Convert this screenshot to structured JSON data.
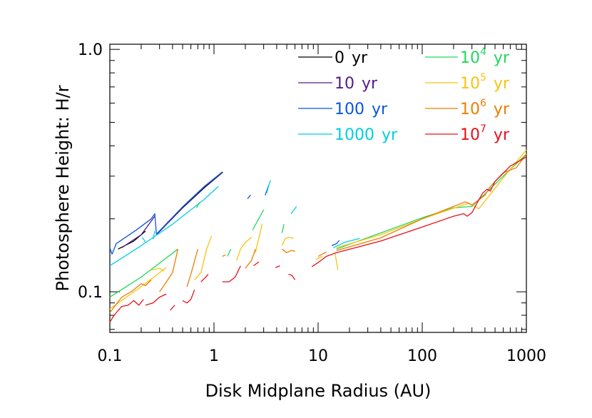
{
  "chart_data": {
    "type": "line",
    "xlabel": "Disk Midplane Radius (AU)",
    "ylabel": "Photosphere Height: H/r",
    "xscale": "log",
    "yscale": "log",
    "xlim": [
      0.1,
      1000
    ],
    "ylim": [
      0.068,
      1.05
    ],
    "xticks": [
      {
        "value": 0.1,
        "label": "0.1"
      },
      {
        "value": 1,
        "label": "1"
      },
      {
        "value": 10,
        "label": "10"
      },
      {
        "value": 100,
        "label": "100"
      },
      {
        "value": 1000,
        "label": "1000"
      }
    ],
    "yticks": [
      {
        "value": 0.1,
        "label": "0.1"
      },
      {
        "value": 1.0,
        "label": "1.0"
      }
    ],
    "legend_placement": "top-right",
    "series": [
      {
        "name": "0 yr",
        "base": "0",
        "exp": "",
        "color": "#000000",
        "segments": [
          [
            [
              0.12,
              0.15
            ],
            [
              0.17,
              0.162
            ],
            [
              0.22,
              0.178
            ]
          ],
          [
            [
              0.28,
              0.172
            ],
            [
              0.5,
              0.222
            ],
            [
              0.8,
              0.268
            ],
            [
              1.2,
              0.31
            ]
          ]
        ]
      },
      {
        "name": "10 yr",
        "base": "10",
        "exp": "",
        "color": "#551a8b",
        "segments": [
          [
            [
              0.13,
              0.152
            ],
            [
              0.2,
              0.172
            ],
            [
              0.27,
              0.205
            ]
          ],
          [
            [
              0.28,
              0.172
            ],
            [
              0.5,
              0.223
            ],
            [
              0.8,
              0.27
            ],
            [
              1.22,
              0.312
            ]
          ]
        ]
      },
      {
        "name": "100 yr",
        "base": "100",
        "exp": "",
        "color": "#0b55e0",
        "segments": [
          [
            [
              0.1,
              0.152
            ],
            [
              0.105,
              0.143
            ],
            [
              0.115,
              0.158
            ],
            [
              0.18,
              0.18
            ],
            [
              0.25,
              0.2
            ],
            [
              0.27,
              0.21
            ],
            [
              0.28,
              0.173
            ],
            [
              0.5,
              0.224
            ],
            [
              0.8,
              0.271
            ],
            [
              1.2,
              0.312
            ]
          ],
          [
            [
              2.1,
              0.242
            ],
            [
              2.25,
              0.251
            ]
          ],
          [
            [
              3.1,
              0.25
            ],
            [
              3.35,
              0.275
            ]
          ],
          [
            [
              13.5,
              0.155
            ],
            [
              15,
              0.158
            ],
            [
              16,
              0.163
            ]
          ]
        ]
      },
      {
        "name": "1000 yr",
        "base": "1000",
        "exp": "",
        "color": "#00cfe0",
        "segments": [
          [
            [
              0.1,
              0.128
            ],
            [
              0.2,
              0.155
            ],
            [
              0.4,
              0.19
            ],
            [
              0.8,
              0.24
            ],
            [
              1.1,
              0.272
            ]
          ],
          [
            [
              0.205,
              0.168
            ],
            [
              0.22,
              0.16
            ]
          ],
          [
            [
              0.26,
              0.165
            ],
            [
              0.27,
              0.178
            ]
          ],
          [
            [
              3.2,
              0.255
            ],
            [
              3.4,
              0.28
            ],
            [
              3.5,
              0.288
            ]
          ],
          [
            [
              5.5,
              0.21
            ],
            [
              6.2,
              0.225
            ]
          ],
          [
            [
              14,
              0.152
            ],
            [
              18,
              0.16
            ],
            [
              25,
              0.166
            ]
          ]
        ]
      },
      {
        "name": "10^4 yr",
        "base": "10",
        "exp": "4",
        "color": "#1fd95b",
        "segments": [
          [
            [
              0.1,
              0.095
            ],
            [
              0.2,
              0.115
            ],
            [
              0.45,
              0.15
            ]
          ],
          [
            [
              0.68,
              0.222
            ],
            [
              0.73,
              0.234
            ]
          ],
          [
            [
              1.35,
              0.14
            ],
            [
              1.45,
              0.15
            ]
          ],
          [
            [
              2.35,
              0.18
            ],
            [
              3.0,
              0.218
            ]
          ],
          [
            [
              4.5,
              0.175
            ],
            [
              4.7,
              0.19
            ]
          ],
          [
            [
              15,
              0.15
            ],
            [
              40,
              0.175
            ],
            [
              100,
              0.202
            ],
            [
              200,
              0.222
            ],
            [
              300,
              0.225
            ],
            [
              600,
              0.3
            ],
            [
              1000,
              0.37
            ]
          ]
        ]
      },
      {
        "name": "10^5 yr",
        "base": "10",
        "exp": "5",
        "color": "#f6c40f",
        "segments": [
          [
            [
              0.1,
              0.085
            ],
            [
              0.2,
              0.105
            ],
            [
              0.35,
              0.126
            ]
          ],
          [
            [
              0.25,
              0.123
            ],
            [
              0.3,
              0.125
            ],
            [
              0.33,
              0.122
            ]
          ],
          [
            [
              0.65,
              0.112
            ],
            [
              0.75,
              0.12
            ],
            [
              0.85,
              0.15
            ],
            [
              0.95,
              0.17
            ]
          ],
          [
            [
              1.65,
              0.135
            ],
            [
              1.8,
              0.15
            ],
            [
              2.0,
              0.16
            ],
            [
              2.3,
              0.168
            ]
          ],
          [
            [
              2.5,
              0.145
            ],
            [
              2.9,
              0.19
            ]
          ],
          [
            [
              4.5,
              0.155
            ],
            [
              4.8,
              0.165
            ],
            [
              5.2,
              0.168
            ],
            [
              5.8,
              0.166
            ]
          ],
          [
            [
              9.5,
              0.136
            ],
            [
              11,
              0.14
            ]
          ],
          [
            [
              14.5,
              0.145
            ],
            [
              15.5,
              0.123
            ]
          ],
          [
            [
              15,
              0.152
            ],
            [
              40,
              0.172
            ],
            [
              100,
              0.2
            ],
            [
              200,
              0.221
            ],
            [
              280,
              0.232
            ],
            [
              350,
              0.22
            ],
            [
              600,
              0.295
            ],
            [
              1000,
              0.385
            ]
          ]
        ]
      },
      {
        "name": "10^6 yr",
        "base": "10",
        "exp": "6",
        "color": "#ef7d00",
        "segments": [
          [
            [
              0.1,
              0.082
            ],
            [
              0.13,
              0.095
            ],
            [
              0.16,
              0.1
            ],
            [
              0.2,
              0.108
            ],
            [
              0.22,
              0.106
            ],
            [
              0.25,
              0.112
            ]
          ],
          [
            [
              0.3,
              0.1
            ],
            [
              0.35,
              0.11
            ],
            [
              0.4,
              0.12
            ],
            [
              0.45,
              0.15
            ]
          ],
          [
            [
              0.55,
              0.105
            ],
            [
              0.6,
              0.118
            ],
            [
              0.7,
              0.15
            ]
          ],
          [
            [
              1.2,
              0.14
            ],
            [
              1.3,
              0.142
            ]
          ],
          [
            [
              2.0,
              0.125
            ],
            [
              2.3,
              0.135
            ],
            [
              2.5,
              0.15
            ]
          ],
          [
            [
              4.5,
              0.15
            ],
            [
              5.0,
              0.145
            ],
            [
              5.5,
              0.148
            ],
            [
              6.0,
              0.147
            ]
          ],
          [
            [
              10,
              0.14
            ],
            [
              12,
              0.146
            ]
          ],
          [
            [
              15,
              0.148
            ],
            [
              40,
              0.167
            ],
            [
              100,
              0.2
            ],
            [
              200,
              0.225
            ],
            [
              260,
              0.235
            ],
            [
              300,
              0.228
            ],
            [
              400,
              0.25
            ],
            [
              450,
              0.272
            ],
            [
              600,
              0.31
            ],
            [
              800,
              0.325
            ],
            [
              1000,
              0.37
            ]
          ]
        ]
      },
      {
        "name": "10^7 yr",
        "base": "10",
        "exp": "7",
        "color": "#e8101a",
        "segments": [
          [
            [
              0.1,
              0.075
            ],
            [
              0.11,
              0.08
            ],
            [
              0.13,
              0.087
            ],
            [
              0.15,
              0.088
            ],
            [
              0.17,
              0.092
            ],
            [
              0.19,
              0.088
            ],
            [
              0.21,
              0.093
            ]
          ],
          [
            [
              0.22,
              0.088
            ],
            [
              0.26,
              0.09
            ],
            [
              0.3,
              0.095
            ],
            [
              0.35,
              0.098
            ]
          ],
          [
            [
              0.38,
              0.084
            ],
            [
              0.42,
              0.088
            ]
          ],
          [
            [
              0.5,
              0.092
            ],
            [
              0.55,
              0.09
            ],
            [
              0.6,
              0.093
            ],
            [
              0.65,
              0.102
            ]
          ],
          [
            [
              0.75,
              0.11
            ],
            [
              0.82,
              0.114
            ],
            [
              0.88,
              0.118
            ]
          ],
          [
            [
              1.2,
              0.11
            ],
            [
              1.4,
              0.11
            ],
            [
              1.6,
              0.115
            ],
            [
              1.8,
              0.128
            ]
          ],
          [
            [
              2.4,
              0.128
            ],
            [
              2.7,
              0.133
            ]
          ],
          [
            [
              3.9,
              0.126
            ],
            [
              4.3,
              0.128
            ]
          ],
          [
            [
              5.2,
              0.118
            ],
            [
              5.6,
              0.117
            ],
            [
              6.0,
              0.112
            ]
          ],
          [
            [
              8.7,
              0.127
            ],
            [
              10,
              0.132
            ],
            [
              12,
              0.14
            ],
            [
              15,
              0.145
            ],
            [
              40,
              0.162
            ],
            [
              100,
              0.185
            ],
            [
              200,
              0.205
            ],
            [
              250,
              0.21
            ],
            [
              270,
              0.205
            ],
            [
              300,
              0.212
            ],
            [
              350,
              0.24
            ],
            [
              380,
              0.255
            ],
            [
              420,
              0.265
            ],
            [
              450,
              0.26
            ],
            [
              500,
              0.285
            ],
            [
              700,
              0.33
            ],
            [
              1000,
              0.36
            ]
          ]
        ]
      }
    ]
  }
}
